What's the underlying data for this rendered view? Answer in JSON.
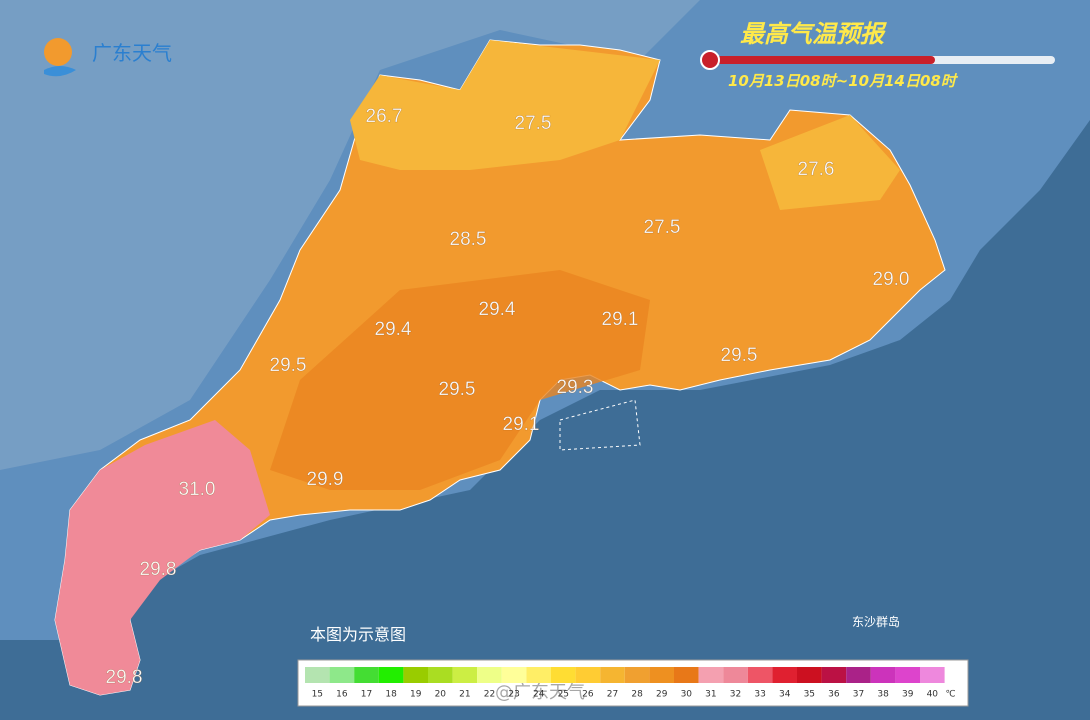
{
  "logo": "广东天气",
  "title": "最高气温预报",
  "period": "10月13日08时~10月14日08时",
  "labels": [
    "26.7",
    "27.5",
    "27.6",
    "28.5",
    "27.5",
    "29.0",
    "29.4",
    "29.4",
    "29.1",
    "29.5",
    "29.5",
    "29.5",
    "29.3",
    "29.1",
    "31.0",
    "29.9",
    "29.8",
    "29.8"
  ],
  "note": "本图为示意图",
  "island": "东沙群岛",
  "legend": {
    "ticks": [
      15,
      16,
      17,
      18,
      19,
      20,
      21,
      22,
      23,
      24,
      25,
      26,
      27,
      28,
      29,
      30,
      31,
      32,
      33,
      34,
      35,
      36,
      37,
      38,
      39,
      40
    ],
    "colors": [
      "#b4e4b0",
      "#8ee88a",
      "#44dd33",
      "#22ee00",
      "#99cc00",
      "#aadd22",
      "#ccee44",
      "#eeff88",
      "#ffff99",
      "#ffee66",
      "#ffdd33",
      "#ffcc33",
      "#f5b531",
      "#f0a030",
      "#ee9020",
      "#e87818",
      "#f4a0b0",
      "#ee8899",
      "#ee5566",
      "#e02030",
      "#cc1020",
      "#bb1144",
      "#aa2288",
      "#cc33bb",
      "#dd44cc",
      "#ee88dd"
    ],
    "unit": "℃"
  },
  "watermark": "@广东天气"
}
